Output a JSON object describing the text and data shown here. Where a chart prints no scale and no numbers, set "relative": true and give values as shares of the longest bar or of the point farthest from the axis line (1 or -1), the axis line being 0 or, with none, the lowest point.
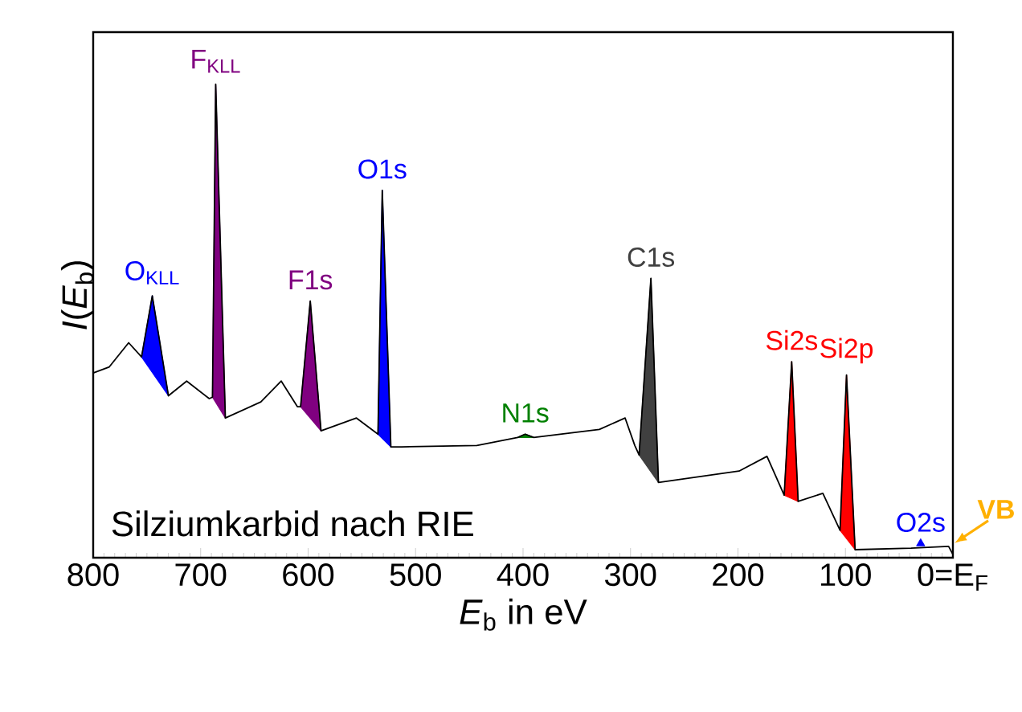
{
  "chart_data": {
    "type": "line",
    "relative": true,
    "xlabel": "*E*$_{b}$ in eV",
    "ylabel": "*I*(*E*$_{b}$)",
    "xlim": [
      800,
      0
    ],
    "xticks": [
      800,
      700,
      600,
      500,
      400,
      300,
      200,
      100,
      {
        "value": 0,
        "label": "0=E$_{F}$"
      }
    ],
    "tick_labels": "x",
    "grid": false,
    "marker": "none",
    "annotations": [
      "Silziumkarbid nach RIE",
      {
        "text": "VB",
        "x": 0,
        "y": 0.024
      }
    ],
    "series": [
      {
        "type": "line",
        "color": "#000000",
        "x": [
          800,
          785,
          767,
          755,
          745,
          730,
          713,
          692,
          689,
          686,
          677,
          644,
          625,
          610,
          607,
          598,
          588,
          555,
          535,
          531,
          523,
          513,
          443,
          405,
          398,
          390,
          329,
          305,
          296,
          292,
          281,
          274,
          199,
          173,
          157,
          150,
          144,
          121,
          105,
          99,
          91,
          39,
          4,
          0
        ],
        "values": [
          0.39,
          0.403,
          0.454,
          0.424,
          0.553,
          0.342,
          0.373,
          0.336,
          0.339,
          1.0,
          0.295,
          0.329,
          0.373,
          0.319,
          0.319,
          0.542,
          0.268,
          0.295,
          0.261,
          0.776,
          0.234,
          0.234,
          0.237,
          0.254,
          0.261,
          0.254,
          0.271,
          0.295,
          0.237,
          0.217,
          0.59,
          0.159,
          0.183,
          0.214,
          0.132,
          0.414,
          0.119,
          0.136,
          0.058,
          0.386,
          0.017,
          0.02,
          0.024,
          0.007
        ]
      },
      {
        "type": "area",
        "name": "O$_{KLL}$",
        "color": "#0000ff",
        "x": [
          755,
          745,
          730
        ],
        "values": [
          0.424,
          0.553,
          0.342
        ]
      },
      {
        "type": "area",
        "name": "F$_{KLL}$",
        "color": "#800080",
        "x": [
          689,
          686,
          677
        ],
        "values": [
          0.339,
          1.0,
          0.295
        ]
      },
      {
        "type": "area",
        "name": "F1s",
        "color": "#800080",
        "x": [
          607,
          598,
          588
        ],
        "values": [
          0.319,
          0.542,
          0.268
        ]
      },
      {
        "type": "area",
        "name": "O1s",
        "color": "#0000ff",
        "x": [
          535,
          531,
          523
        ],
        "values": [
          0.261,
          0.776,
          0.234
        ]
      },
      {
        "type": "area",
        "name": "N1s",
        "color": "#008000",
        "x": [
          405,
          398,
          390
        ],
        "values": [
          0.254,
          0.261,
          0.254
        ]
      },
      {
        "type": "area",
        "name": "C1s",
        "color": "#404040",
        "x": [
          292,
          281,
          274
        ],
        "values": [
          0.217,
          0.59,
          0.159
        ]
      },
      {
        "type": "area",
        "name": "Si2s",
        "color": "#ff0000",
        "x": [
          157,
          150,
          144
        ],
        "values": [
          0.132,
          0.414,
          0.119
        ]
      },
      {
        "type": "area",
        "name": "Si2p",
        "color": "#ff0000",
        "x": [
          105,
          99,
          91
        ],
        "values": [
          0.058,
          0.386,
          0.017
        ]
      },
      {
        "type": "scatter",
        "name": "O2s",
        "color": "#0000ff",
        "marker": "triangle",
        "x": [
          30
        ],
        "values": [
          0.03
        ]
      }
    ]
  }
}
